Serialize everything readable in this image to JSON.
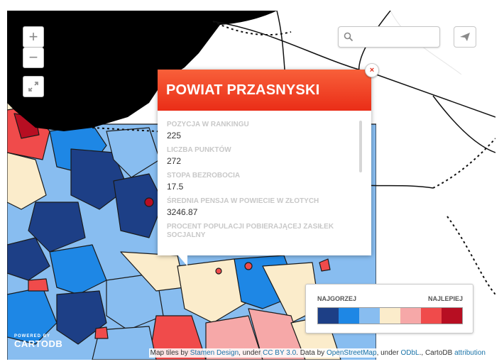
{
  "map": {
    "zoom_in": "+",
    "zoom_out": "−",
    "fullscreen_icon": "expand-icon",
    "search_placeholder": "",
    "search_icon": "search-icon",
    "share_icon": "send-icon"
  },
  "popup": {
    "title": "POWIAT PRZASNYSKI",
    "close": "×",
    "fields": [
      {
        "label": "POZYCJA W RANKINGU",
        "value": "225"
      },
      {
        "label": "LICZBA PUNKTÓW",
        "value": "272"
      },
      {
        "label": "STOPA BEZROBOCIA",
        "value": "17.5"
      },
      {
        "label": "ŚREDNIA PENSJA W POWIECIE W ZŁOTYCH",
        "value": "3246.87"
      },
      {
        "label": "PROCENT POPULACJI POBIERAJĄCEJ ZASIŁEK SOCJALNY",
        "value": ""
      }
    ]
  },
  "legend": {
    "left_label": "NAJGORZEJ",
    "right_label": "NAJLEPIEJ",
    "colors": [
      "#1d3f86",
      "#1e87e5",
      "#88bdf0",
      "#fbeccb",
      "#f6a8a8",
      "#f04b4b",
      "#b70e22"
    ]
  },
  "logo": {
    "small": "POWERED BY",
    "big": "CARTODB"
  },
  "attribution": {
    "t1": "Map tiles by ",
    "l1": "Stamen Design",
    "t2": ", under ",
    "l2": "CC BY 3.0",
    "t3": ". Data by ",
    "l3": "OpenStreetMap",
    "t4": ", under ",
    "l4": "ODbL",
    "t5": "., CartoDB ",
    "l5": "attribution"
  }
}
